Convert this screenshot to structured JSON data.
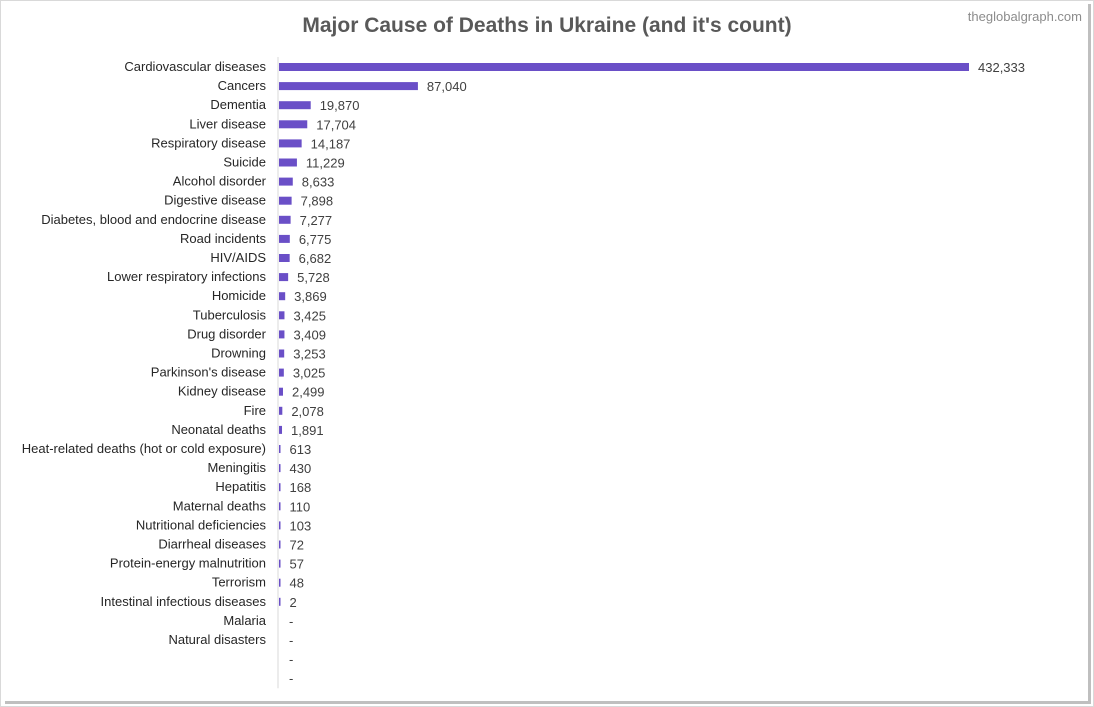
{
  "title": "Major Cause of Deaths in Ukraine (and it's count)",
  "watermark": "theglobalgraph.com",
  "chart_data": {
    "type": "bar",
    "orientation": "horizontal",
    "bar_color": "#6a4fc7",
    "categories": [
      "Cardiovascular diseases",
      "Cancers",
      "Dementia",
      "Liver disease",
      "Respiratory disease",
      "Suicide",
      "Alcohol disorder",
      "Digestive disease",
      "Diabetes, blood and endocrine disease",
      "Road incidents",
      "HIV/AIDS",
      "Lower respiratory infections",
      "Homicide",
      "Tuberculosis",
      "Drug disorder",
      "Drowning",
      "Parkinson's disease",
      "Kidney disease",
      "Fire",
      "Neonatal deaths",
      "Heat-related deaths (hot or cold exposure)",
      "Meningitis",
      "Hepatitis",
      "Maternal deaths",
      "Nutritional deficiencies",
      "Diarrheal diseases",
      "Protein-energy malnutrition",
      "Terrorism",
      "Intestinal infectious diseases",
      "Malaria",
      "Natural disasters",
      "",
      ""
    ],
    "values": [
      432333,
      87040,
      19870,
      17704,
      14187,
      11229,
      8633,
      7898,
      7277,
      6775,
      6682,
      5728,
      3869,
      3425,
      3409,
      3253,
      3025,
      2499,
      2078,
      1891,
      613,
      430,
      168,
      110,
      103,
      72,
      57,
      48,
      2,
      null,
      null,
      null,
      null
    ],
    "value_labels": [
      "432,333",
      "87,040",
      "19,870",
      "17,704",
      "14,187",
      "11,229",
      "8,633",
      "7,898",
      "7,277",
      "6,775",
      "6,682",
      "5,728",
      "3,869",
      "3,425",
      "3,409",
      "3,253",
      "3,025",
      "2,499",
      "2,078",
      "1,891",
      "613",
      "430",
      "168",
      "110",
      "103",
      "72",
      "57",
      "48",
      "2",
      "-",
      "-",
      "-",
      "-"
    ],
    "xlim": [
      0,
      432333
    ],
    "grid": false,
    "legend": "none"
  }
}
